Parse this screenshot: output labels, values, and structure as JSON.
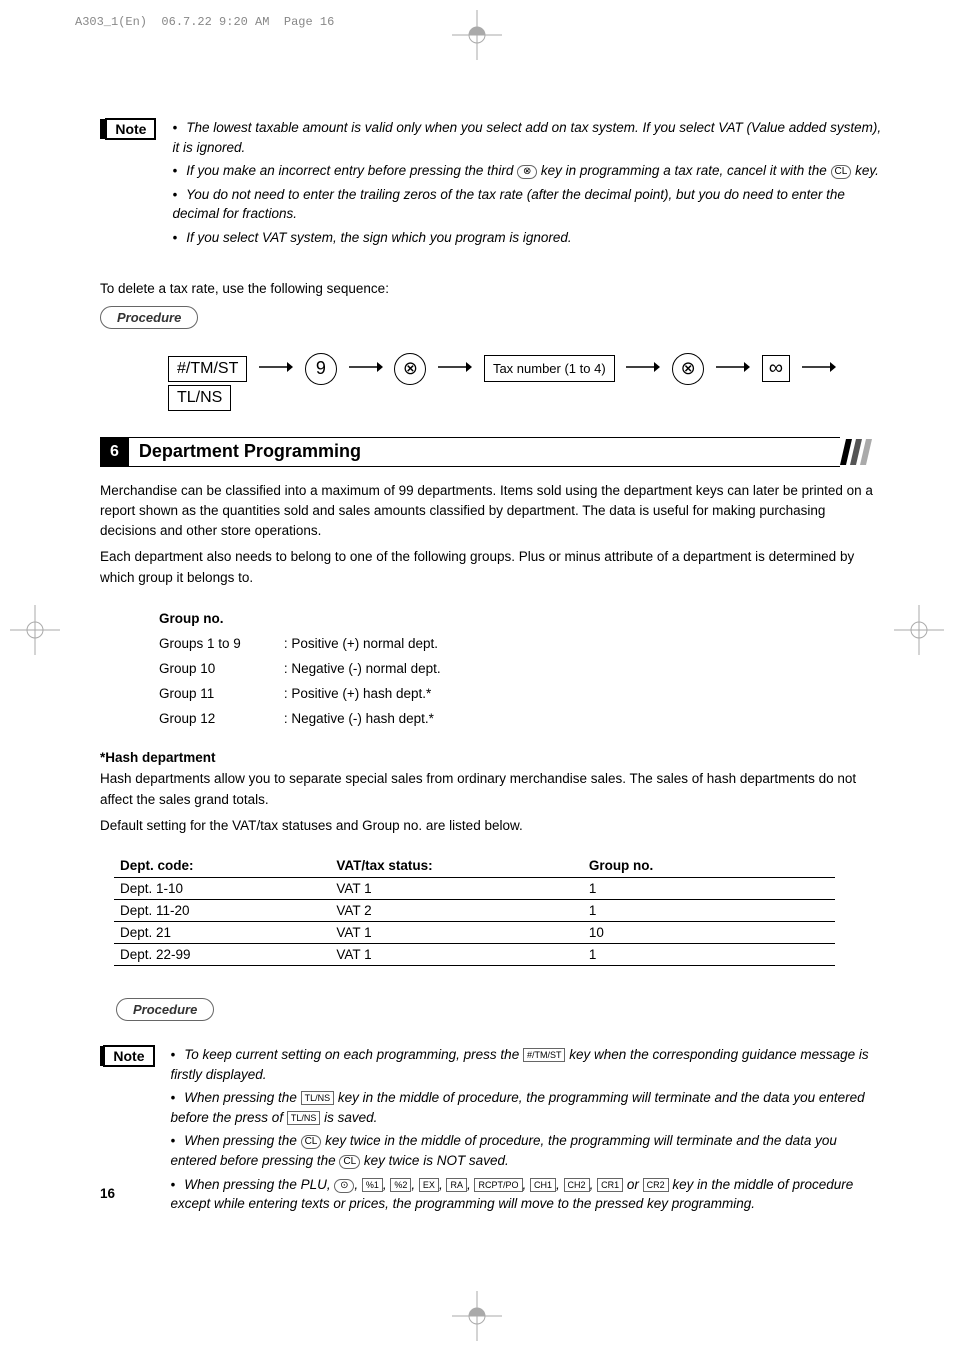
{
  "header": {
    "docId": "A303_1(En)",
    "date": "06.7.22",
    "time": "9:20 AM",
    "pageRef": "Page 16"
  },
  "note1": {
    "label": "Note",
    "bullets": [
      {
        "pre": "The lowest taxable amount is valid only when you select add on tax system. If you select VAT (Value added system), it is ignored.",
        "keys": []
      },
      {
        "pre": "If you make an incorrect entry before pressing the third ",
        "key1": "⊗",
        "mid": " key in programming a tax rate, cancel it with the ",
        "key2": "CL",
        "post": " key."
      },
      {
        "pre": "You do not need to enter the trailing zeros of the tax rate (after the decimal point), but you do need to enter the decimal for fractions.",
        "keys": []
      },
      {
        "pre": "If you select VAT system, the sign which you program is ignored.",
        "keys": []
      }
    ]
  },
  "deleteLine": "To delete a tax rate, use the following sequence:",
  "procedureLabel": "Procedure",
  "flow": {
    "step1": "#/TM/ST",
    "step2": "9",
    "step3": "⊗",
    "step4": "Tax number (1 to 4)",
    "step5": "⊗",
    "step6": "∞",
    "step7": "TL/NS"
  },
  "section": {
    "num": "6",
    "title": "Department Programming"
  },
  "para1": "Merchandise can be classified into a maximum of 99 departments.  Items sold using the department keys can later be printed on a report shown as the quantities sold and sales amounts classified by department.  The data is useful for making purchasing decisions and other store operations.",
  "para2": "Each department also needs to belong to one of the following groups. Plus or minus attribute of a department is determined by which group it belongs to.",
  "groups": {
    "header": "Group no.",
    "rows": [
      {
        "a": "Groups 1 to 9",
        "b": ": Positive (+) normal dept."
      },
      {
        "a": "Group 10",
        "b": ": Negative (-) normal dept."
      },
      {
        "a": "Group 11",
        "b": ": Positive (+) hash dept.*"
      },
      {
        "a": "Group 12",
        "b": ": Negative (-) hash dept.*"
      }
    ]
  },
  "hash": {
    "header": "*Hash department",
    "text": "Hash departments allow you to separate special sales from ordinary merchandise sales. The sales of hash departments do not affect the sales grand totals."
  },
  "defaultLine": "Default setting for the VAT/tax statuses and Group no. are listed below.",
  "vatTable": {
    "h1": "Dept. code:",
    "h2": "VAT/tax status:",
    "h3": "Group no.",
    "rows": [
      {
        "a": "Dept. 1-10",
        "b": "VAT 1",
        "c": "1"
      },
      {
        "a": "Dept. 11-20",
        "b": "VAT 2",
        "c": "1"
      },
      {
        "a": "Dept. 21",
        "b": "VAT 1",
        "c": "10"
      },
      {
        "a": "Dept. 22-99",
        "b": "VAT 1",
        "c": "1"
      }
    ]
  },
  "note2": {
    "label": "Note",
    "b1a": "To keep current setting on each programming, press the ",
    "b1key": "#/TM/ST",
    "b1b": " key when the corresponding guidance message is firstly displayed.",
    "b2a": "When pressing the ",
    "b2key1": "TL/NS",
    "b2b": " key in the middle of procedure, the programming will terminate and the data you entered before the press of ",
    "b2key2": "TL/NS",
    "b2c": " is saved.",
    "b3a": "When pressing the ",
    "b3key1": "CL",
    "b3b": " key twice in the middle of procedure, the programming will terminate and the data you entered before pressing the ",
    "b3key2": "CL",
    "b3c": " key twice is NOT saved.",
    "b4a": "When pressing the PLU, ",
    "b4keys": [
      "⊙",
      "%1",
      "%2",
      "EX",
      "RA",
      "RCPT/PO",
      "CH1",
      "CH2",
      "CR1"
    ],
    "b4mid": " or ",
    "b4last": "CR2",
    "b4b": " key in the middle of procedure except while entering texts or prices, the programming will move to the pressed key programming."
  },
  "pageNum": "16"
}
